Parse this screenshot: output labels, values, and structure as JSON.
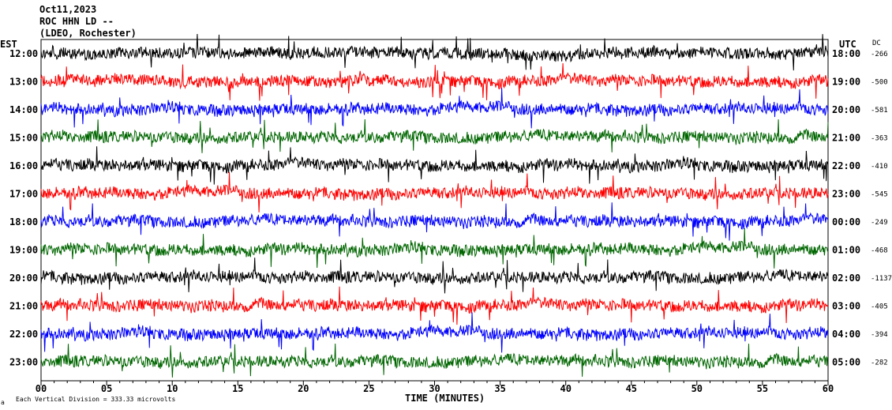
{
  "header": {
    "line1": "Oct11,2023",
    "line2": "ROC HHN LD --",
    "line3": "(LDEO, Rochester)"
  },
  "left_zone_label": "EST",
  "right_zone_label": "UTC",
  "dc_header": "DC",
  "footer": {
    "corner_mark": "a",
    "division_note": "Each Vertical Division =  333.33 microvolts"
  },
  "chart_data": {
    "type": "line",
    "title": "",
    "xlabel": "TIME (MINUTES)",
    "ylabel": "",
    "xlim": [
      0,
      60
    ],
    "x_ticks": [
      "00",
      "05",
      "10",
      "15",
      "20",
      "25",
      "30",
      "35",
      "40",
      "45",
      "50",
      "55",
      "60"
    ],
    "series_colors": [
      "#000000",
      "#ff0000",
      "#0000ff",
      "#006600"
    ],
    "traces": [
      {
        "est": "12:00",
        "utc": "18:00",
        "dc": "-266"
      },
      {
        "est": "13:00",
        "utc": "19:00",
        "dc": "-500"
      },
      {
        "est": "14:00",
        "utc": "20:00",
        "dc": "-581"
      },
      {
        "est": "15:00",
        "utc": "21:00",
        "dc": "-363"
      },
      {
        "est": "16:00",
        "utc": "22:00",
        "dc": "-410"
      },
      {
        "est": "17:00",
        "utc": "23:00",
        "dc": "-545"
      },
      {
        "est": "18:00",
        "utc": "00:00",
        "dc": "-249"
      },
      {
        "est": "19:00",
        "utc": "01:00",
        "dc": "-468"
      },
      {
        "est": "20:00",
        "utc": "02:00",
        "dc": "-1137"
      },
      {
        "est": "21:00",
        "utc": "03:00",
        "dc": "-405"
      },
      {
        "est": "22:00",
        "utc": "04:00",
        "dc": "-394"
      },
      {
        "est": "23:00",
        "utc": "05:00",
        "dc": "-282"
      }
    ]
  }
}
